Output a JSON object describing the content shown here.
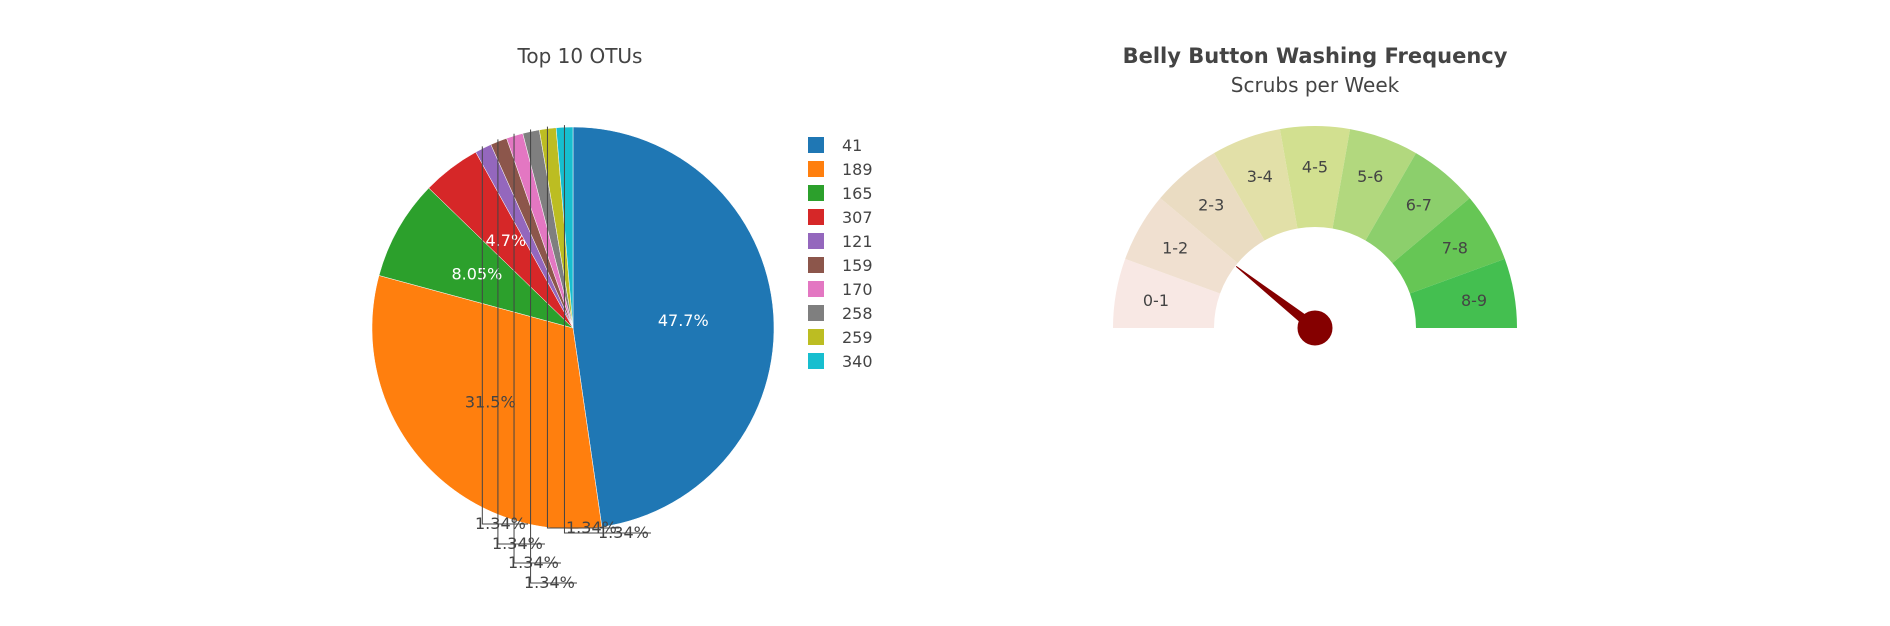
{
  "chart_data": [
    {
      "type": "pie",
      "title": "Top 10 OTUs",
      "labels": [
        "41",
        "189",
        "165",
        "307",
        "121",
        "159",
        "170",
        "258",
        "259",
        "340"
      ],
      "percent_labels": [
        "47.7%",
        "31.5%",
        "8.05%",
        "4.7%",
        "1.34%",
        "1.34%",
        "1.34%",
        "1.34%",
        "1.34%",
        "1.34%"
      ],
      "values": [
        47.7,
        31.5,
        8.05,
        4.7,
        1.34,
        1.34,
        1.34,
        1.34,
        1.34,
        1.34
      ],
      "colors": [
        "#1f77b4",
        "#ff7f0e",
        "#2ca02c",
        "#d62728",
        "#9467bd",
        "#8c564b",
        "#e377c2",
        "#7f7f7f",
        "#bcbd22",
        "#17becf"
      ],
      "legend_placement": "right"
    },
    {
      "type": "gauge",
      "title": "Belly Button Washing Frequency",
      "subtitle": "Scrubs per Week",
      "range": [
        0,
        9
      ],
      "segments": [
        "0-1",
        "1-2",
        "2-3",
        "3-4",
        "4-5",
        "5-6",
        "6-7",
        "7-8",
        "8-9"
      ],
      "segment_colors": [
        "#f8e8e4",
        "#f0e0d0",
        "#eadcc2",
        "#e2e0a8",
        "#d2e090",
        "#b2d87e",
        "#8ccf6c",
        "#66c655",
        "#44bf50"
      ],
      "needle_value": 2,
      "needle_color": "#850000"
    }
  ]
}
